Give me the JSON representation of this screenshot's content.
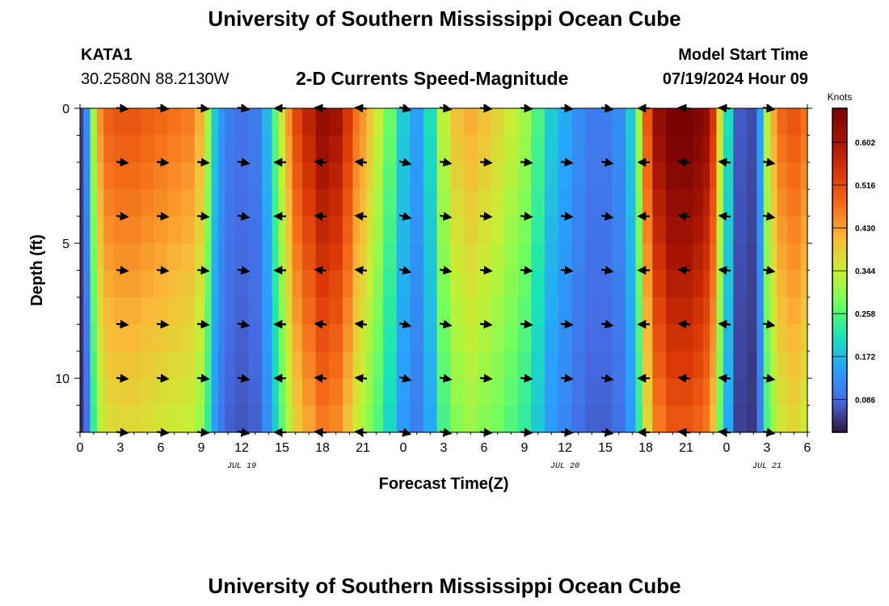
{
  "header": {
    "title": "University of Southern Mississippi Ocean Cube",
    "station_name": "KATA1",
    "station_coords": "30.2580N  88.2130W",
    "model_start_label": "Model Start Time",
    "model_start_value": "07/19/2024 Hour 09",
    "footer_title": "University of Southern Mississippi Ocean Cube"
  },
  "chart_data": {
    "type": "heatmap",
    "title": "2-D Currents Speed-Magnitude",
    "xlabel": "Forecast Time(Z)",
    "ylabel": "Depth (ft)",
    "colorbar_label": "Knots",
    "xlim": [
      0,
      54
    ],
    "ylim": [
      0,
      12
    ],
    "y_inverted": true,
    "x_ticks": [
      0,
      3,
      6,
      9,
      12,
      15,
      18,
      21,
      24,
      27,
      30,
      33,
      36,
      39,
      42,
      45,
      48,
      51,
      54
    ],
    "x_tick_labels": [
      "0",
      "3",
      "6",
      "9",
      "12",
      "15",
      "18",
      "21",
      "0",
      "3",
      "6",
      "9",
      "12",
      "15",
      "18",
      "21",
      "0",
      "3",
      "6"
    ],
    "date_labels": [
      {
        "x": 12,
        "label": "JUL 19"
      },
      {
        "x": 36,
        "label": "JUL 20"
      },
      {
        "x": 51,
        "label": "JUL 21"
      }
    ],
    "y_ticks": [
      0,
      5,
      10
    ],
    "y_tick_labels": [
      "0",
      "5",
      "10"
    ],
    "colorbar_ticks": [
      0.086,
      0.172,
      0.258,
      0.344,
      0.43,
      0.516,
      0.602
    ],
    "colorbar_tick_labels": [
      "0.086",
      "0.172",
      "0.258",
      "0.344",
      "0.430",
      "0.516",
      "0.602"
    ],
    "colorbar_range": [
      0.02,
      0.67
    ],
    "time_hours": [
      0,
      0.5,
      1,
      1.5,
      2,
      3,
      4,
      5,
      6,
      7,
      8,
      9,
      9.5,
      10,
      10.5,
      11,
      12,
      13,
      14,
      14.5,
      15,
      15.5,
      16,
      17,
      18,
      19,
      20,
      20.5,
      21,
      21.5,
      22,
      23,
      24,
      25,
      26,
      27,
      28,
      29,
      30,
      31,
      32,
      33,
      34,
      35,
      36,
      37,
      38,
      39,
      40,
      41,
      41.5,
      42,
      43,
      44,
      45,
      46,
      46.5,
      47,
      47.5,
      48,
      49,
      50,
      50.5,
      51,
      51.5,
      52,
      53,
      54
    ],
    "speed_knots": [
      0.05,
      0.12,
      0.3,
      0.42,
      0.47,
      0.48,
      0.48,
      0.47,
      0.46,
      0.45,
      0.44,
      0.4,
      0.3,
      0.18,
      0.13,
      0.1,
      0.09,
      0.1,
      0.16,
      0.25,
      0.34,
      0.42,
      0.5,
      0.55,
      0.6,
      0.58,
      0.52,
      0.45,
      0.42,
      0.38,
      0.33,
      0.26,
      0.18,
      0.14,
      0.2,
      0.32,
      0.38,
      0.4,
      0.38,
      0.36,
      0.33,
      0.3,
      0.24,
      0.18,
      0.15,
      0.12,
      0.1,
      0.1,
      0.12,
      0.18,
      0.3,
      0.48,
      0.6,
      0.65,
      0.65,
      0.63,
      0.6,
      0.52,
      0.35,
      0.2,
      0.07,
      0.06,
      0.14,
      0.32,
      0.4,
      0.46,
      0.48,
      0.45
    ],
    "depth_factor_top": 1.05,
    "depth_factor_bottom": 0.78,
    "vectors": {
      "times": [
        3,
        6,
        9,
        12,
        15,
        18,
        21,
        24,
        27,
        30,
        33,
        36,
        39,
        42,
        45,
        48,
        51
      ],
      "depths": [
        0,
        2,
        4,
        6,
        8,
        10,
        12
      ],
      "angles_deg": [
        5,
        5,
        5,
        10,
        180,
        185,
        185,
        15,
        10,
        5,
        5,
        5,
        10,
        180,
        185,
        185,
        10
      ]
    }
  }
}
